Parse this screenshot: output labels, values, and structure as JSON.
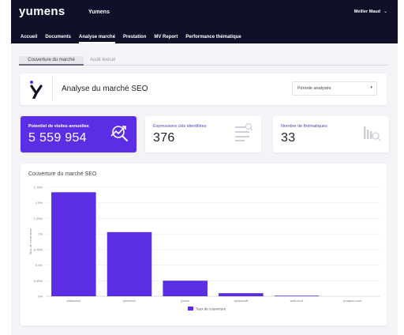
{
  "app": {
    "logo": "yumens",
    "brand": "Yumens",
    "user": "Meiller Maud"
  },
  "nav": {
    "items": [
      {
        "label": "Accueil"
      },
      {
        "label": "Documents"
      },
      {
        "label": "Analyse marché",
        "active": true
      },
      {
        "label": "Prestation"
      },
      {
        "label": "MV Report"
      },
      {
        "label": "Performance thématique"
      }
    ]
  },
  "subtabs": {
    "active": "Couverture du marché",
    "other": "Audit lexical"
  },
  "header": {
    "title": "Analyse du marché SEO",
    "period_placeholder": "Période analysée"
  },
  "stats": [
    {
      "label": "Potentiel de visites annuelles",
      "value": "5 559 954",
      "icon": "chart-search-icon"
    },
    {
      "label": "Expressions clés identifiées",
      "value": "376",
      "icon": "list-search-icon"
    },
    {
      "label": "Nombre de thématiques",
      "value": "33",
      "icon": "bars-search-icon"
    }
  ],
  "colors": {
    "accent": "#5b2ee6",
    "topbar": "#101029",
    "background": "#f3f3f8"
  },
  "chart_data": {
    "type": "bar",
    "title": "Couverture du marché SEO",
    "ylabel": "Taux de couverture",
    "categories": [
      "elekmach",
      "yumench",
      "jumch",
      "cybercraft",
      "web-eu.fr",
      "proapen.com"
    ],
    "series": [
      {
        "name": "Taux de couverture",
        "values": [
          1.67,
          1.03,
          0.25,
          0.05,
          0.01,
          0
        ]
      }
    ],
    "yticks": [
      "0%",
      "0.25%",
      "0.5%",
      "0.75%",
      "1%",
      "1.25%",
      "1.5%",
      "1.75%"
    ],
    "ylim": [
      0,
      1.75
    ],
    "grid": true,
    "legend": "bottom"
  }
}
